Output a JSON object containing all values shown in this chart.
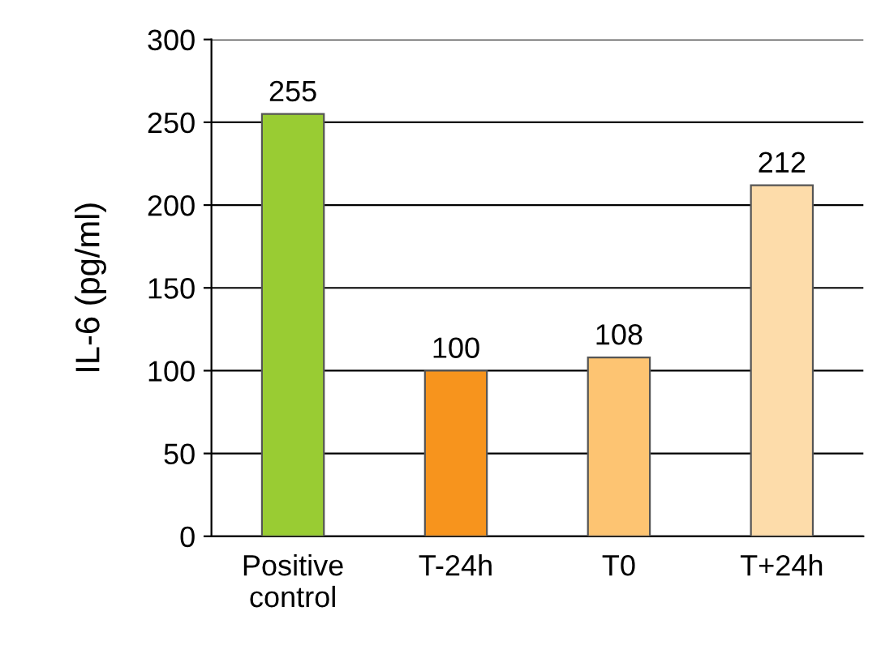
{
  "chart_data": {
    "type": "bar",
    "ylabel": "IL-6 (pg/ml)",
    "categories": [
      "Positive\ncontrol",
      "T-24h",
      "T0",
      "T+24h"
    ],
    "values": [
      255,
      100,
      108,
      212
    ],
    "colors": [
      "#99cc33",
      "#f7941d",
      "#fdc472",
      "#fddcaa"
    ],
    "ylim": [
      0,
      300
    ],
    "yticks": [
      0,
      50,
      100,
      150,
      200,
      250,
      300
    ],
    "grid": "y",
    "data_labels": true
  }
}
